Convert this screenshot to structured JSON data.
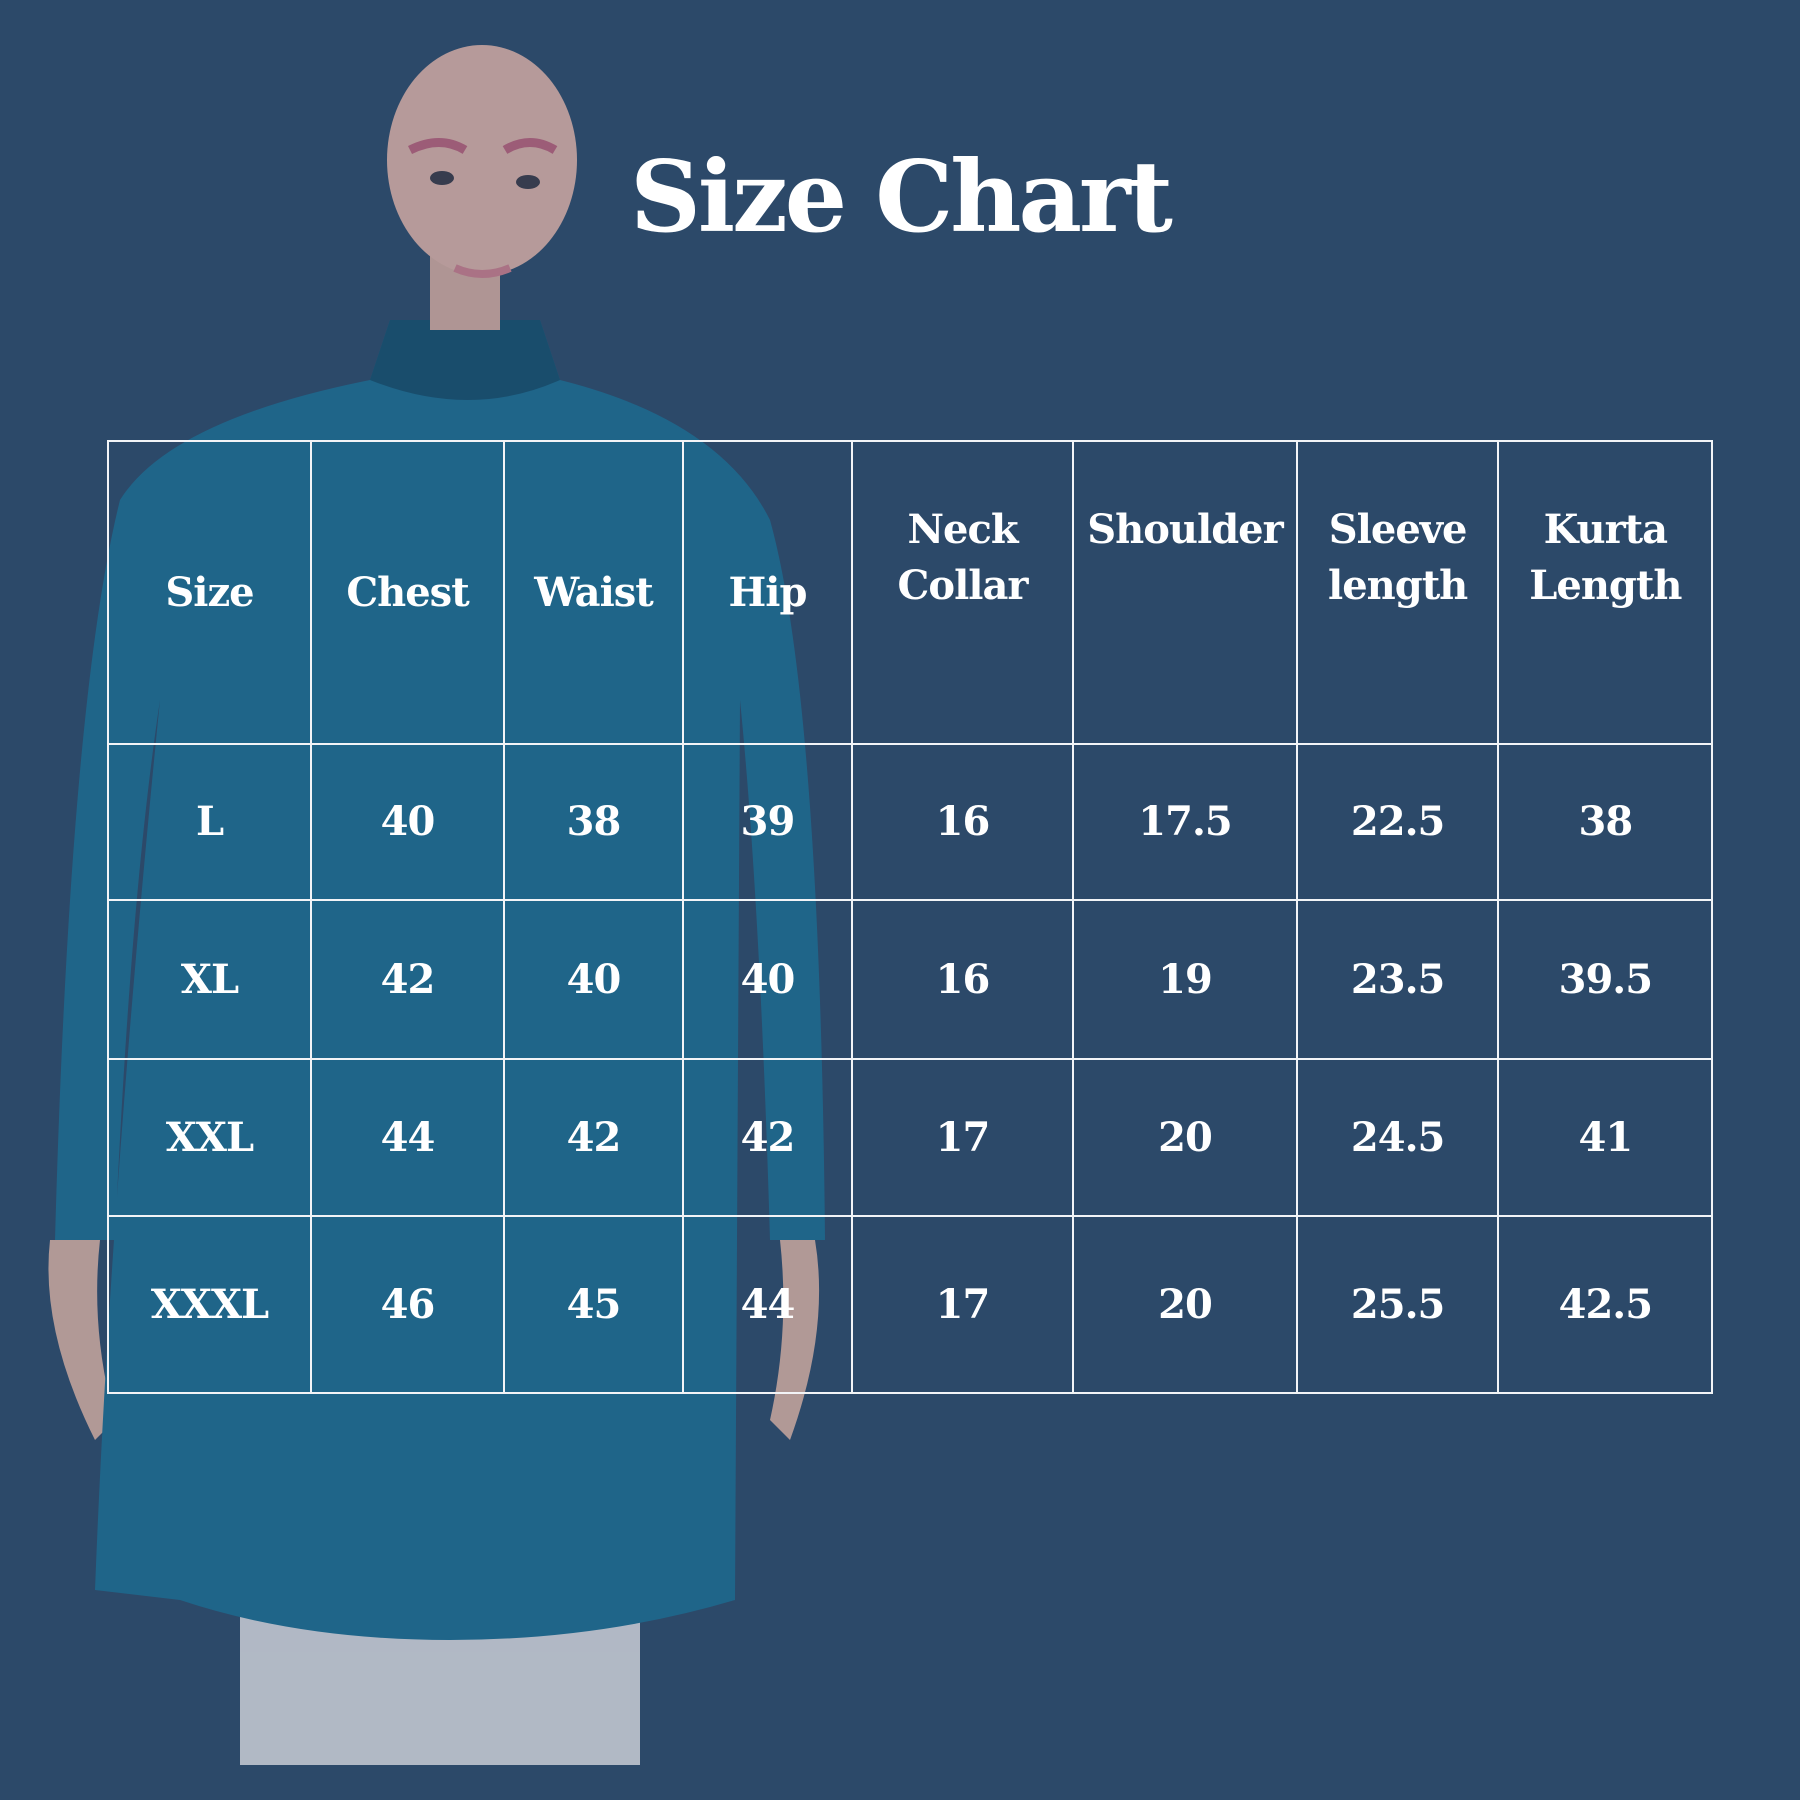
{
  "title": "Size Chart",
  "colors": {
    "background": "#2c4969",
    "kurta": "#1d6a8f",
    "text": "#ffffff"
  },
  "table": {
    "headers": [
      "Size",
      "Chest",
      "Waist",
      "Hip",
      "Neck Collar",
      "Shoulder",
      "Sleeve length",
      "Kurta Length"
    ],
    "rows": [
      [
        "L",
        "40",
        "38",
        "39",
        "16",
        "17.5",
        "22.5",
        "38"
      ],
      [
        "XL",
        "42",
        "40",
        "40",
        "16",
        "19",
        "23.5",
        "39.5"
      ],
      [
        "XXL",
        "44",
        "42",
        "42",
        "17",
        "20",
        "24.5",
        "41"
      ],
      [
        "XXXL",
        "46",
        "45",
        "44",
        "17",
        "20",
        "25.5",
        "42.5"
      ]
    ]
  }
}
